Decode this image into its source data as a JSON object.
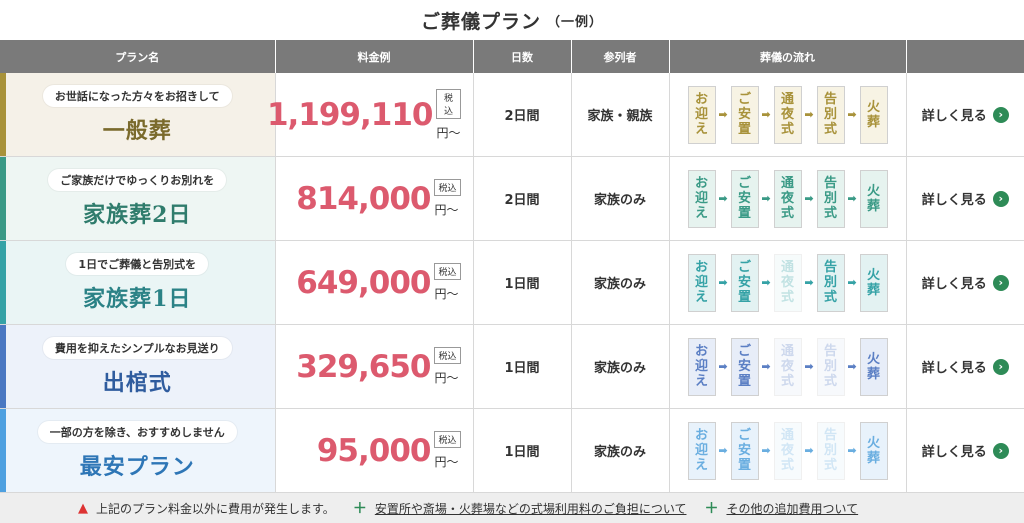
{
  "page_title": "ご葬儀プラン",
  "page_title_sub": "（一例）",
  "headers": [
    "プラン名",
    "料金例",
    "日数",
    "参列者",
    "葬儀の流れ",
    ""
  ],
  "tax_label": "税込",
  "yen_label": "円〜",
  "detail_label": "詳しく見る",
  "detail_icon": "chevron-right-circle-icon",
  "plans": [
    {
      "sub": "お世話になった方々をお招きして",
      "name": "一般葬",
      "price": "1,199,110",
      "days": "2日間",
      "attendees": "家族・親族",
      "accent": "#a8923a",
      "bg": "#f5f1e8",
      "name_color": "#7a6a2c",
      "flow_color": "#a8923a",
      "flow_bg": "#f7f3e4"
    },
    {
      "sub": "ご家族だけでゆっくりお別れを",
      "name": "家族葬2日",
      "price": "814,000",
      "days": "2日間",
      "attendees": "家族のみ",
      "accent": "#3a9a86",
      "bg": "#eef6f3",
      "name_color": "#2f7c6c",
      "flow_color": "#3a9a86",
      "flow_bg": "#e6f3ef"
    },
    {
      "sub": "1日でご葬儀と告別式を",
      "name": "家族葬1日",
      "price": "649,000",
      "days": "1日間",
      "attendees": "家族のみ",
      "accent": "#35a2a6",
      "bg": "#eaf5f5",
      "name_color": "#2b8286",
      "flow_color": "#35a2a6",
      "flow_bg": "#e3f2f2"
    },
    {
      "sub": "費用を抑えたシンプルなお見送り",
      "name": "出棺式",
      "price": "329,650",
      "days": "1日間",
      "attendees": "家族のみ",
      "accent": "#4a78c2",
      "bg": "#edf2fa",
      "name_color": "#2f5c9e",
      "flow_color": "#5b7fc4",
      "flow_bg": "#e7edf8"
    },
    {
      "sub": "一部の方を除き、おすすめしません",
      "name": "最安プラン",
      "price": "95,000",
      "days": "1日間",
      "attendees": "家族のみ",
      "accent": "#4ea0e0",
      "bg": "#eef5fc",
      "name_color": "#2e76b6",
      "flow_color": "#6aaee0",
      "flow_bg": "#e8f2fb"
    }
  ],
  "flow_steps": [
    "お迎え",
    "ご安置",
    "通夜式",
    "告別式",
    "火葬"
  ],
  "flow_active": [
    [
      true,
      true,
      true,
      true,
      true
    ],
    [
      true,
      true,
      true,
      true,
      true
    ],
    [
      true,
      true,
      false,
      true,
      true
    ],
    [
      true,
      true,
      false,
      false,
      true
    ],
    [
      true,
      true,
      false,
      false,
      true
    ]
  ],
  "footer": {
    "warning_icon": "warning-icon",
    "warning_text": "上記のプラン料金以外に費用が発生します。",
    "link1": "安置所や斎場・火葬場などの式場利用料のご負担について",
    "link2": "その他の追加費用ついて"
  }
}
